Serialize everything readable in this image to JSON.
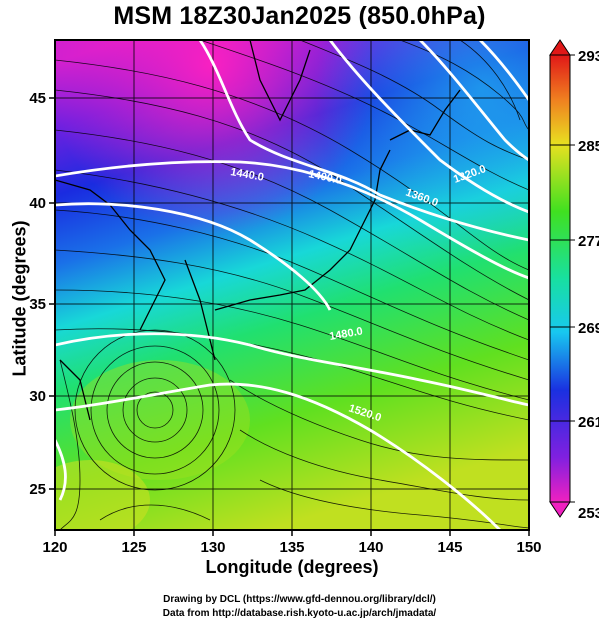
{
  "title": "MSM 18Z30Jan2025 (850.0hPa)",
  "xlabel": "Longitude (degrees)",
  "ylabel": "Latitude  (degrees)",
  "x_ticks": [
    "120",
    "125",
    "130",
    "135",
    "140",
    "145",
    "150"
  ],
  "y_ticks": [
    "25",
    "30",
    "35",
    "40",
    "45"
  ],
  "colorbar_ticks": [
    "293",
    "285",
    "277",
    "269",
    "261",
    "253"
  ],
  "contour_labels": [
    "1440.0",
    "1400.0",
    "1360.0",
    "1320.0",
    "1480.0",
    "1520.0"
  ],
  "credit_line1": "Drawing by DCL (https://www.gfd-dennou.org/library/dcl/)",
  "credit_line2": "Data from http://database.rish.kyoto-u.ac.jp/arch/jmadata/",
  "colors": {
    "cold": "#e020c0",
    "blue": "#1a2bd8",
    "cyan": "#10d8d0",
    "green": "#30e020",
    "yellow": "#e0e020",
    "red": "#e01010",
    "contour": "#ffffff",
    "streamline": "#000000"
  },
  "chart_data": {
    "type": "heatmap",
    "variable": "temperature with geopotential height contours and wind streamlines",
    "level": "850.0hPa",
    "xlim": [
      120,
      150
    ],
    "ylim": [
      22.5,
      47.5
    ],
    "colorbar_range": [
      253,
      293
    ],
    "colorbar_ticks": [
      293,
      285,
      277,
      269,
      261,
      253
    ],
    "contours": [
      {
        "label": "1440.0",
        "value": 1440.0
      },
      {
        "label": "1400.0",
        "value": 1400.0
      },
      {
        "label": "1360.0",
        "value": 1360.0
      },
      {
        "label": "1320.0",
        "value": 1320.0
      },
      {
        "label": "1480.0",
        "value": 1480.0
      },
      {
        "label": "1520.0",
        "value": 1520.0
      }
    ]
  }
}
